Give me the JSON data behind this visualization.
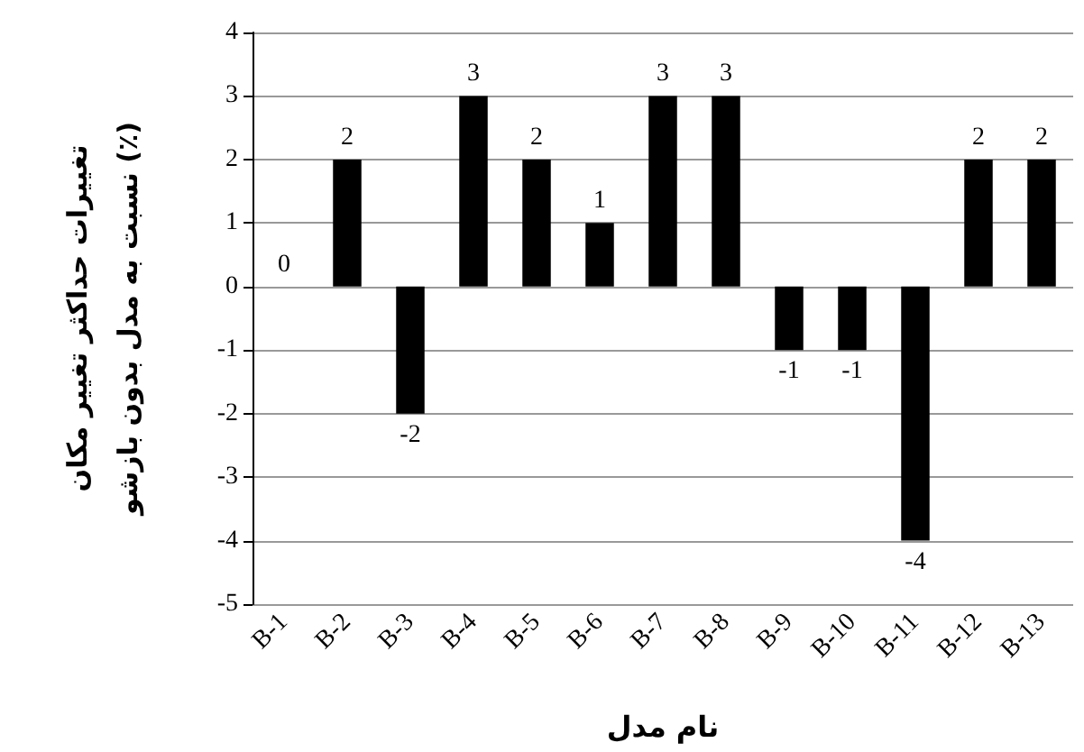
{
  "chart_data": {
    "type": "bar",
    "xlabel": "نام مدل",
    "ylabel": "تغییرات حداکثر تغییر مکان\nنسبت به مدل بدون بازشو (٪)",
    "categories": [
      "B-1",
      "B-2",
      "B-3",
      "B-4",
      "B-5",
      "B-6",
      "B-7",
      "B-8",
      "B-9",
      "B-10",
      "B-11",
      "B-12",
      "B-13"
    ],
    "values": [
      0,
      2,
      -2,
      3,
      2,
      1,
      3,
      3,
      -1,
      -1,
      -4,
      2,
      2
    ],
    "color": "#000000",
    "ylim": [
      -5,
      4
    ],
    "yticks": [
      -5,
      -4,
      -3,
      -2,
      -1,
      0,
      1,
      2,
      3,
      4
    ],
    "grid": "y",
    "data_labels": true
  }
}
